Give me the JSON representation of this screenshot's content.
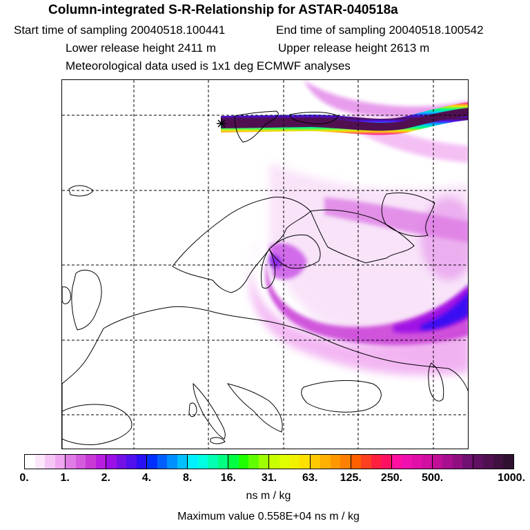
{
  "header": {
    "title": "Column-integrated S-R-Relationship for ASTAR-040518a",
    "start": "Start time of sampling 20040518.100441",
    "end": "End time of sampling 20040518.100542",
    "lower": "Lower release height 2411 m",
    "upper": "Upper release height 2613 m",
    "met": "Meteorological data used is 1x1 deg ECMWF analyses"
  },
  "colorbar": {
    "ticks": [
      "0.",
      "1.",
      "2.",
      "4.",
      "8.",
      "16.",
      "31.",
      "63.",
      "125.",
      "250.",
      "500.",
      "1000."
    ],
    "segments": [
      [
        "#ffffff",
        "#fbe6fb",
        "#f5c6f5",
        "#f0a6f0"
      ],
      [
        "#e07ce6",
        "#d45ade",
        "#c83ad6",
        "#b81ee0"
      ],
      [
        "#9a10e6",
        "#7410e6",
        "#5010ee",
        "#2a10f5"
      ],
      [
        "#0030ff",
        "#0060ff",
        "#0090ff",
        "#00c0ff"
      ],
      [
        "#00f0ff",
        "#00ffe0",
        "#00ffb0",
        "#00ff80"
      ],
      [
        "#00ff40",
        "#20ff00",
        "#60ff00",
        "#a0ff00"
      ],
      [
        "#c8ff00",
        "#e0ff00",
        "#f0f000",
        "#ffe000"
      ],
      [
        "#ffc800",
        "#ffb000",
        "#ff9800",
        "#ff8000"
      ],
      [
        "#ff6000",
        "#ff4020",
        "#ff2040",
        "#ff1060"
      ],
      [
        "#ff10a0",
        "#f010b0",
        "#e010a8",
        "#d010a0"
      ],
      [
        "#c01098",
        "#a81090",
        "#901080",
        "#701070"
      ],
      [
        "#601060",
        "#501050",
        "#401040",
        "#301030"
      ]
    ],
    "unit": "ns m / kg",
    "max_label": "Maximum value  0.558E+04 ns m / kg"
  },
  "map": {
    "grid": true,
    "marker": "release-site-star",
    "colors": {
      "plume_light": "#f3c6f5",
      "plume_mid": "#d35ae0",
      "plume_strong": "#a010e0",
      "plume_core": "#2a10f5",
      "plume_dark": "#501050",
      "coastline": "#000000"
    }
  }
}
